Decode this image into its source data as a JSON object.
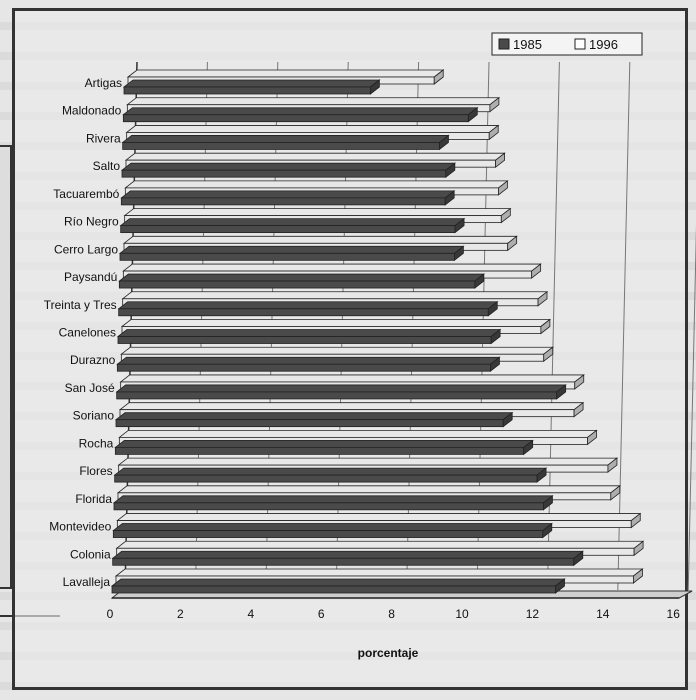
{
  "chart_data": {
    "type": "bar",
    "orientation": "horizontal",
    "categories": [
      "Artigas",
      "Maldonado",
      "Rivera",
      "Salto",
      "Tacuarembó",
      "Río Negro",
      "Cerro Largo",
      "Paysandú",
      "Treinta y Tres",
      "Canelones",
      "Durazno",
      "San José",
      "Soriano",
      "Rocha",
      "Flores",
      "Florida",
      "Montevideo",
      "Colonia",
      "Lavalleja"
    ],
    "series": [
      {
        "name": "1985",
        "color": "#4a4a4a",
        "values": [
          7.0,
          9.8,
          9.0,
          9.2,
          9.2,
          9.5,
          9.5,
          10.1,
          10.5,
          10.6,
          10.6,
          12.5,
          11.0,
          11.6,
          12.0,
          12.2,
          12.2,
          13.1,
          12.6
        ]
      },
      {
        "name": "1996",
        "color": "#e8e8e8",
        "values": [
          8.7,
          10.3,
          10.3,
          10.5,
          10.6,
          10.7,
          10.9,
          11.6,
          11.8,
          11.9,
          12.0,
          12.9,
          12.9,
          13.3,
          13.9,
          14.0,
          14.6,
          14.7,
          14.7
        ]
      }
    ],
    "xlabel": "porcentaje",
    "ylabel": "",
    "xlim": [
      0,
      16
    ],
    "x_ticks": [
      "0",
      "2",
      "4",
      "6",
      "8",
      "10",
      "12",
      "14",
      "16"
    ],
    "legend_position": "top-right",
    "grid": true
  }
}
